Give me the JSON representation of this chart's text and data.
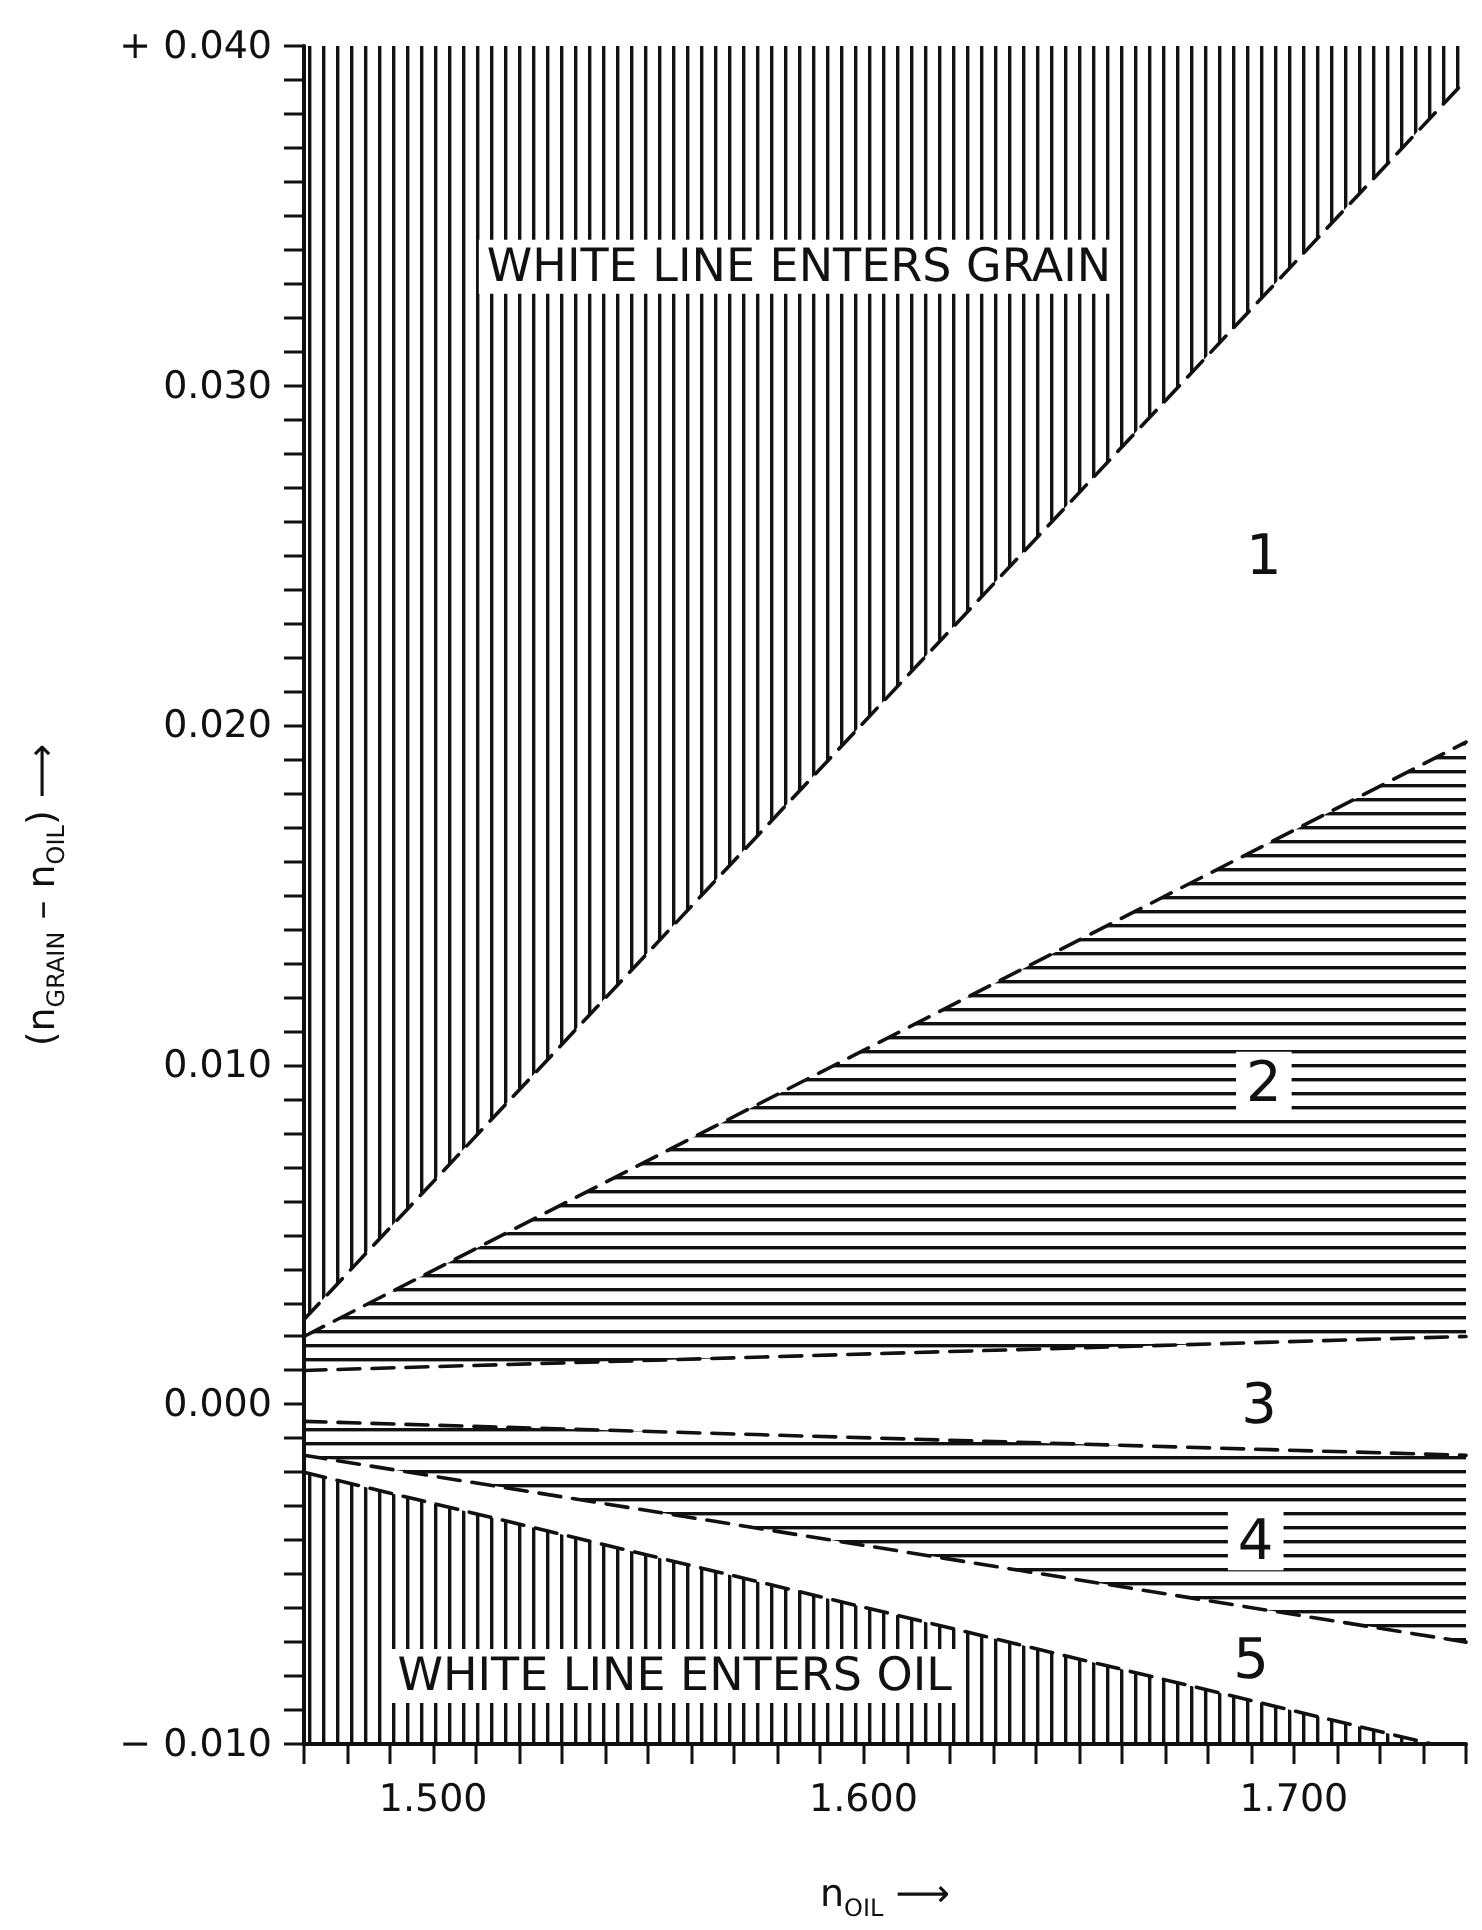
{
  "chart_data": {
    "type": "line",
    "xlabel": "n$_{OIL}$ ⟶",
    "ylabel": "(n$_{GRAIN}$ – n$_{OIL}$) ⟶",
    "xlim": [
      1.47,
      1.74
    ],
    "ylim": [
      -0.01,
      0.04
    ],
    "xticks": [
      {
        "value": 1.47,
        "label": null
      },
      {
        "value": 1.48,
        "label": null
      },
      {
        "value": 1.49,
        "label": null
      },
      {
        "value": 1.5,
        "label": "1.500"
      },
      {
        "value": 1.51,
        "label": null
      },
      {
        "value": 1.52,
        "label": null
      },
      {
        "value": 1.53,
        "label": null
      },
      {
        "value": 1.54,
        "label": null
      },
      {
        "value": 1.55,
        "label": null
      },
      {
        "value": 1.56,
        "label": null
      },
      {
        "value": 1.57,
        "label": null
      },
      {
        "value": 1.58,
        "label": null
      },
      {
        "value": 1.59,
        "label": null
      },
      {
        "value": 1.6,
        "label": "1.600"
      },
      {
        "value": 1.61,
        "label": null
      },
      {
        "value": 1.62,
        "label": null
      },
      {
        "value": 1.63,
        "label": null
      },
      {
        "value": 1.64,
        "label": null
      },
      {
        "value": 1.65,
        "label": null
      },
      {
        "value": 1.66,
        "label": null
      },
      {
        "value": 1.67,
        "label": null
      },
      {
        "value": 1.68,
        "label": null
      },
      {
        "value": 1.69,
        "label": null
      },
      {
        "value": 1.7,
        "label": "1.700"
      },
      {
        "value": 1.71,
        "label": null
      },
      {
        "value": 1.72,
        "label": null
      },
      {
        "value": 1.73,
        "label": null
      },
      {
        "value": 1.74,
        "label": null
      }
    ],
    "yticks": [
      {
        "value": -0.01,
        "label": "− 0.010"
      },
      {
        "value": -0.009,
        "label": null
      },
      {
        "value": -0.008,
        "label": null
      },
      {
        "value": -0.007,
        "label": null
      },
      {
        "value": -0.006,
        "label": null
      },
      {
        "value": -0.005,
        "label": null
      },
      {
        "value": -0.004,
        "label": null
      },
      {
        "value": -0.003,
        "label": null
      },
      {
        "value": -0.002,
        "label": null
      },
      {
        "value": -0.001,
        "label": null
      },
      {
        "value": 0,
        "label": "0.000"
      },
      {
        "value": 0.001,
        "label": null
      },
      {
        "value": 0.002,
        "label": null
      },
      {
        "value": 0.003,
        "label": null
      },
      {
        "value": 0.004,
        "label": null
      },
      {
        "value": 0.005,
        "label": null
      },
      {
        "value": 0.006,
        "label": null
      },
      {
        "value": 0.007,
        "label": null
      },
      {
        "value": 0.008,
        "label": null
      },
      {
        "value": 0.009,
        "label": null
      },
      {
        "value": 0.01,
        "label": "0.010"
      },
      {
        "value": 0.011,
        "label": null
      },
      {
        "value": 0.012,
        "label": null
      },
      {
        "value": 0.013,
        "label": null
      },
      {
        "value": 0.014,
        "label": null
      },
      {
        "value": 0.015,
        "label": null
      },
      {
        "value": 0.016,
        "label": null
      },
      {
        "value": 0.017,
        "label": null
      },
      {
        "value": 0.018,
        "label": null
      },
      {
        "value": 0.019,
        "label": null
      },
      {
        "value": 0.02,
        "label": "0.020"
      },
      {
        "value": 0.021,
        "label": null
      },
      {
        "value": 0.022,
        "label": null
      },
      {
        "value": 0.023,
        "label": null
      },
      {
        "value": 0.024,
        "label": null
      },
      {
        "value": 0.025,
        "label": null
      },
      {
        "value": 0.026,
        "label": null
      },
      {
        "value": 0.027,
        "label": null
      },
      {
        "value": 0.028,
        "label": null
      },
      {
        "value": 0.029,
        "label": null
      },
      {
        "value": 0.03,
        "label": "0.030"
      },
      {
        "value": 0.031,
        "label": null
      },
      {
        "value": 0.032,
        "label": null
      },
      {
        "value": 0.033,
        "label": null
      },
      {
        "value": 0.034,
        "label": null
      },
      {
        "value": 0.035,
        "label": null
      },
      {
        "value": 0.036,
        "label": null
      },
      {
        "value": 0.037,
        "label": null
      },
      {
        "value": 0.038,
        "label": null
      },
      {
        "value": 0.039,
        "label": null
      },
      {
        "value": 0.04,
        "label": "+ 0.040"
      }
    ],
    "line_style": "dashed",
    "series": [
      {
        "color": "#111111",
        "x": [
          1.47,
          1.74
        ],
        "values": [
          0.0025,
          0.039
        ],
        "lower": [
          0.0025,
          0.039
        ],
        "upper": [
          0.04,
          0.04
        ]
      },
      {
        "color": "#111111",
        "x": [
          1.47,
          1.74
        ],
        "values": [
          0.002,
          0.0195
        ],
        "lower": [
          0.001,
          0.002
        ],
        "upper": [
          0.002,
          0.0195
        ]
      },
      {
        "color": "#111111",
        "x": [
          1.47,
          1.74
        ],
        "values": [
          0.001,
          0.002
        ]
      },
      {
        "color": "#111111",
        "x": [
          1.47,
          1.74
        ],
        "values": [
          -0.0005,
          -0.0015
        ],
        "lower": [
          -0.0015,
          -0.007
        ],
        "upper": [
          -0.0005,
          -0.0015
        ]
      },
      {
        "color": "#111111",
        "x": [
          1.47,
          1.74
        ],
        "values": [
          -0.0015,
          -0.007
        ]
      },
      {
        "color": "#111111",
        "x": [
          1.47,
          1.732
        ],
        "values": [
          -0.002,
          -0.01
        ],
        "lower": [
          -0.01,
          -0.01
        ],
        "upper": [
          -0.002,
          -0.01
        ]
      }
    ],
    "annotations": [
      "WHITE LINE ENTERS GRAIN",
      "WHITE LINE ENTERS OIL",
      "1",
      "2",
      "3",
      "4",
      "5"
    ]
  }
}
